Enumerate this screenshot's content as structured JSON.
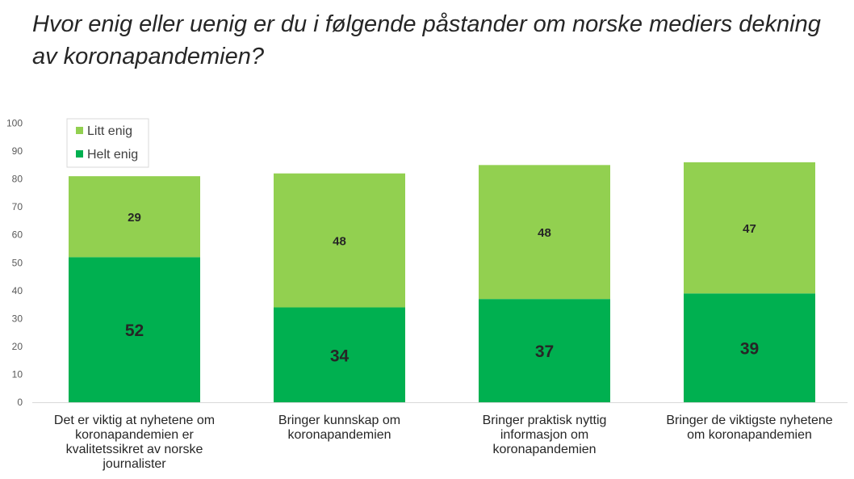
{
  "chart_data": {
    "type": "bar",
    "stacked": true,
    "title": "Hvor enig eller uenig er du i følgende påstander om norske mediers dekning av koronapandemien?",
    "categories": [
      [
        "Det er viktig at nyhetene om",
        "koronapandemien er",
        "kvalitetssikret av norske",
        "journalister"
      ],
      [
        "Bringer kunnskap om",
        "koronapandemien"
      ],
      [
        "Bringer praktisk nyttig",
        "informasjon om",
        "koronapandemien"
      ],
      [
        "Bringer de viktigste nyhetene",
        "om koronapandemien"
      ]
    ],
    "series": [
      {
        "name": "Helt enig",
        "color": "#00b050",
        "values": [
          52,
          34,
          37,
          39
        ]
      },
      {
        "name": "Litt enig",
        "color": "#92d050",
        "values": [
          29,
          48,
          48,
          47
        ]
      }
    ],
    "ylim": [
      0,
      100
    ],
    "yticks": [
      0,
      10,
      20,
      30,
      40,
      50,
      60,
      70,
      80,
      90,
      100
    ],
    "legend": {
      "position": "top-left",
      "order": [
        "Litt enig",
        "Helt enig"
      ]
    },
    "grid": false
  }
}
